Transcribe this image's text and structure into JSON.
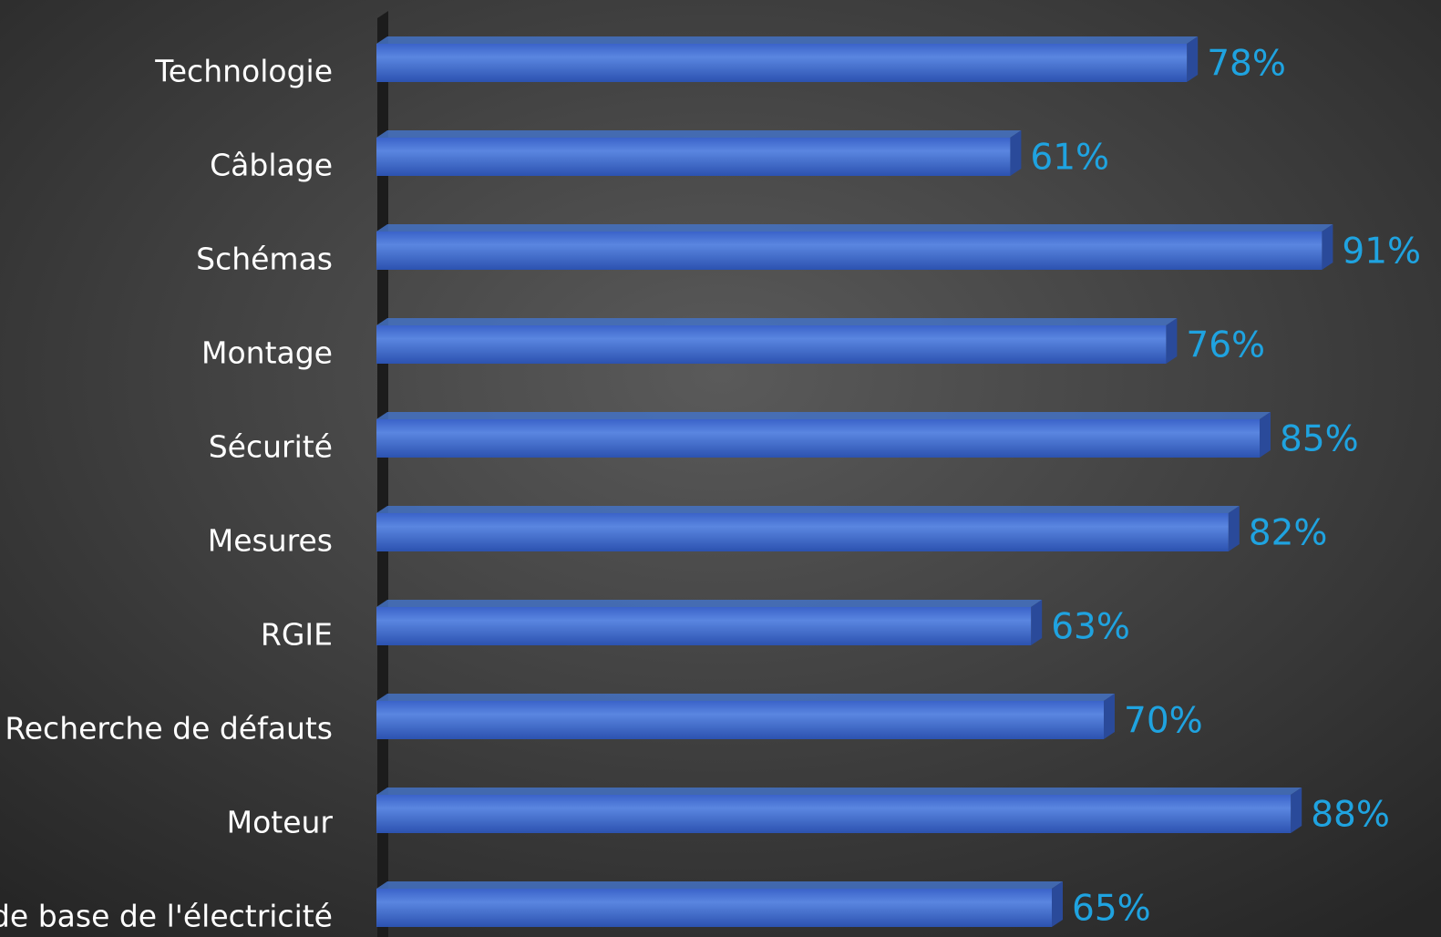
{
  "chart_data": {
    "type": "bar",
    "orientation": "horizontal",
    "categories": [
      "Technologie",
      "Câblage",
      "Schémas",
      "Montage",
      "Sécurité",
      "Mesures",
      "RGIE",
      "Recherche de défauts",
      "Moteur",
      "de base de l'électricité"
    ],
    "values": [
      78,
      61,
      91,
      76,
      85,
      82,
      63,
      70,
      88,
      65
    ],
    "value_labels": [
      "78%",
      "61%",
      "91%",
      "76%",
      "85%",
      "82%",
      "63%",
      "70%",
      "88%",
      "65%"
    ],
    "color": "#4472c4",
    "label_color": "#1fa3e0",
    "xlim": [
      0,
      100
    ]
  }
}
